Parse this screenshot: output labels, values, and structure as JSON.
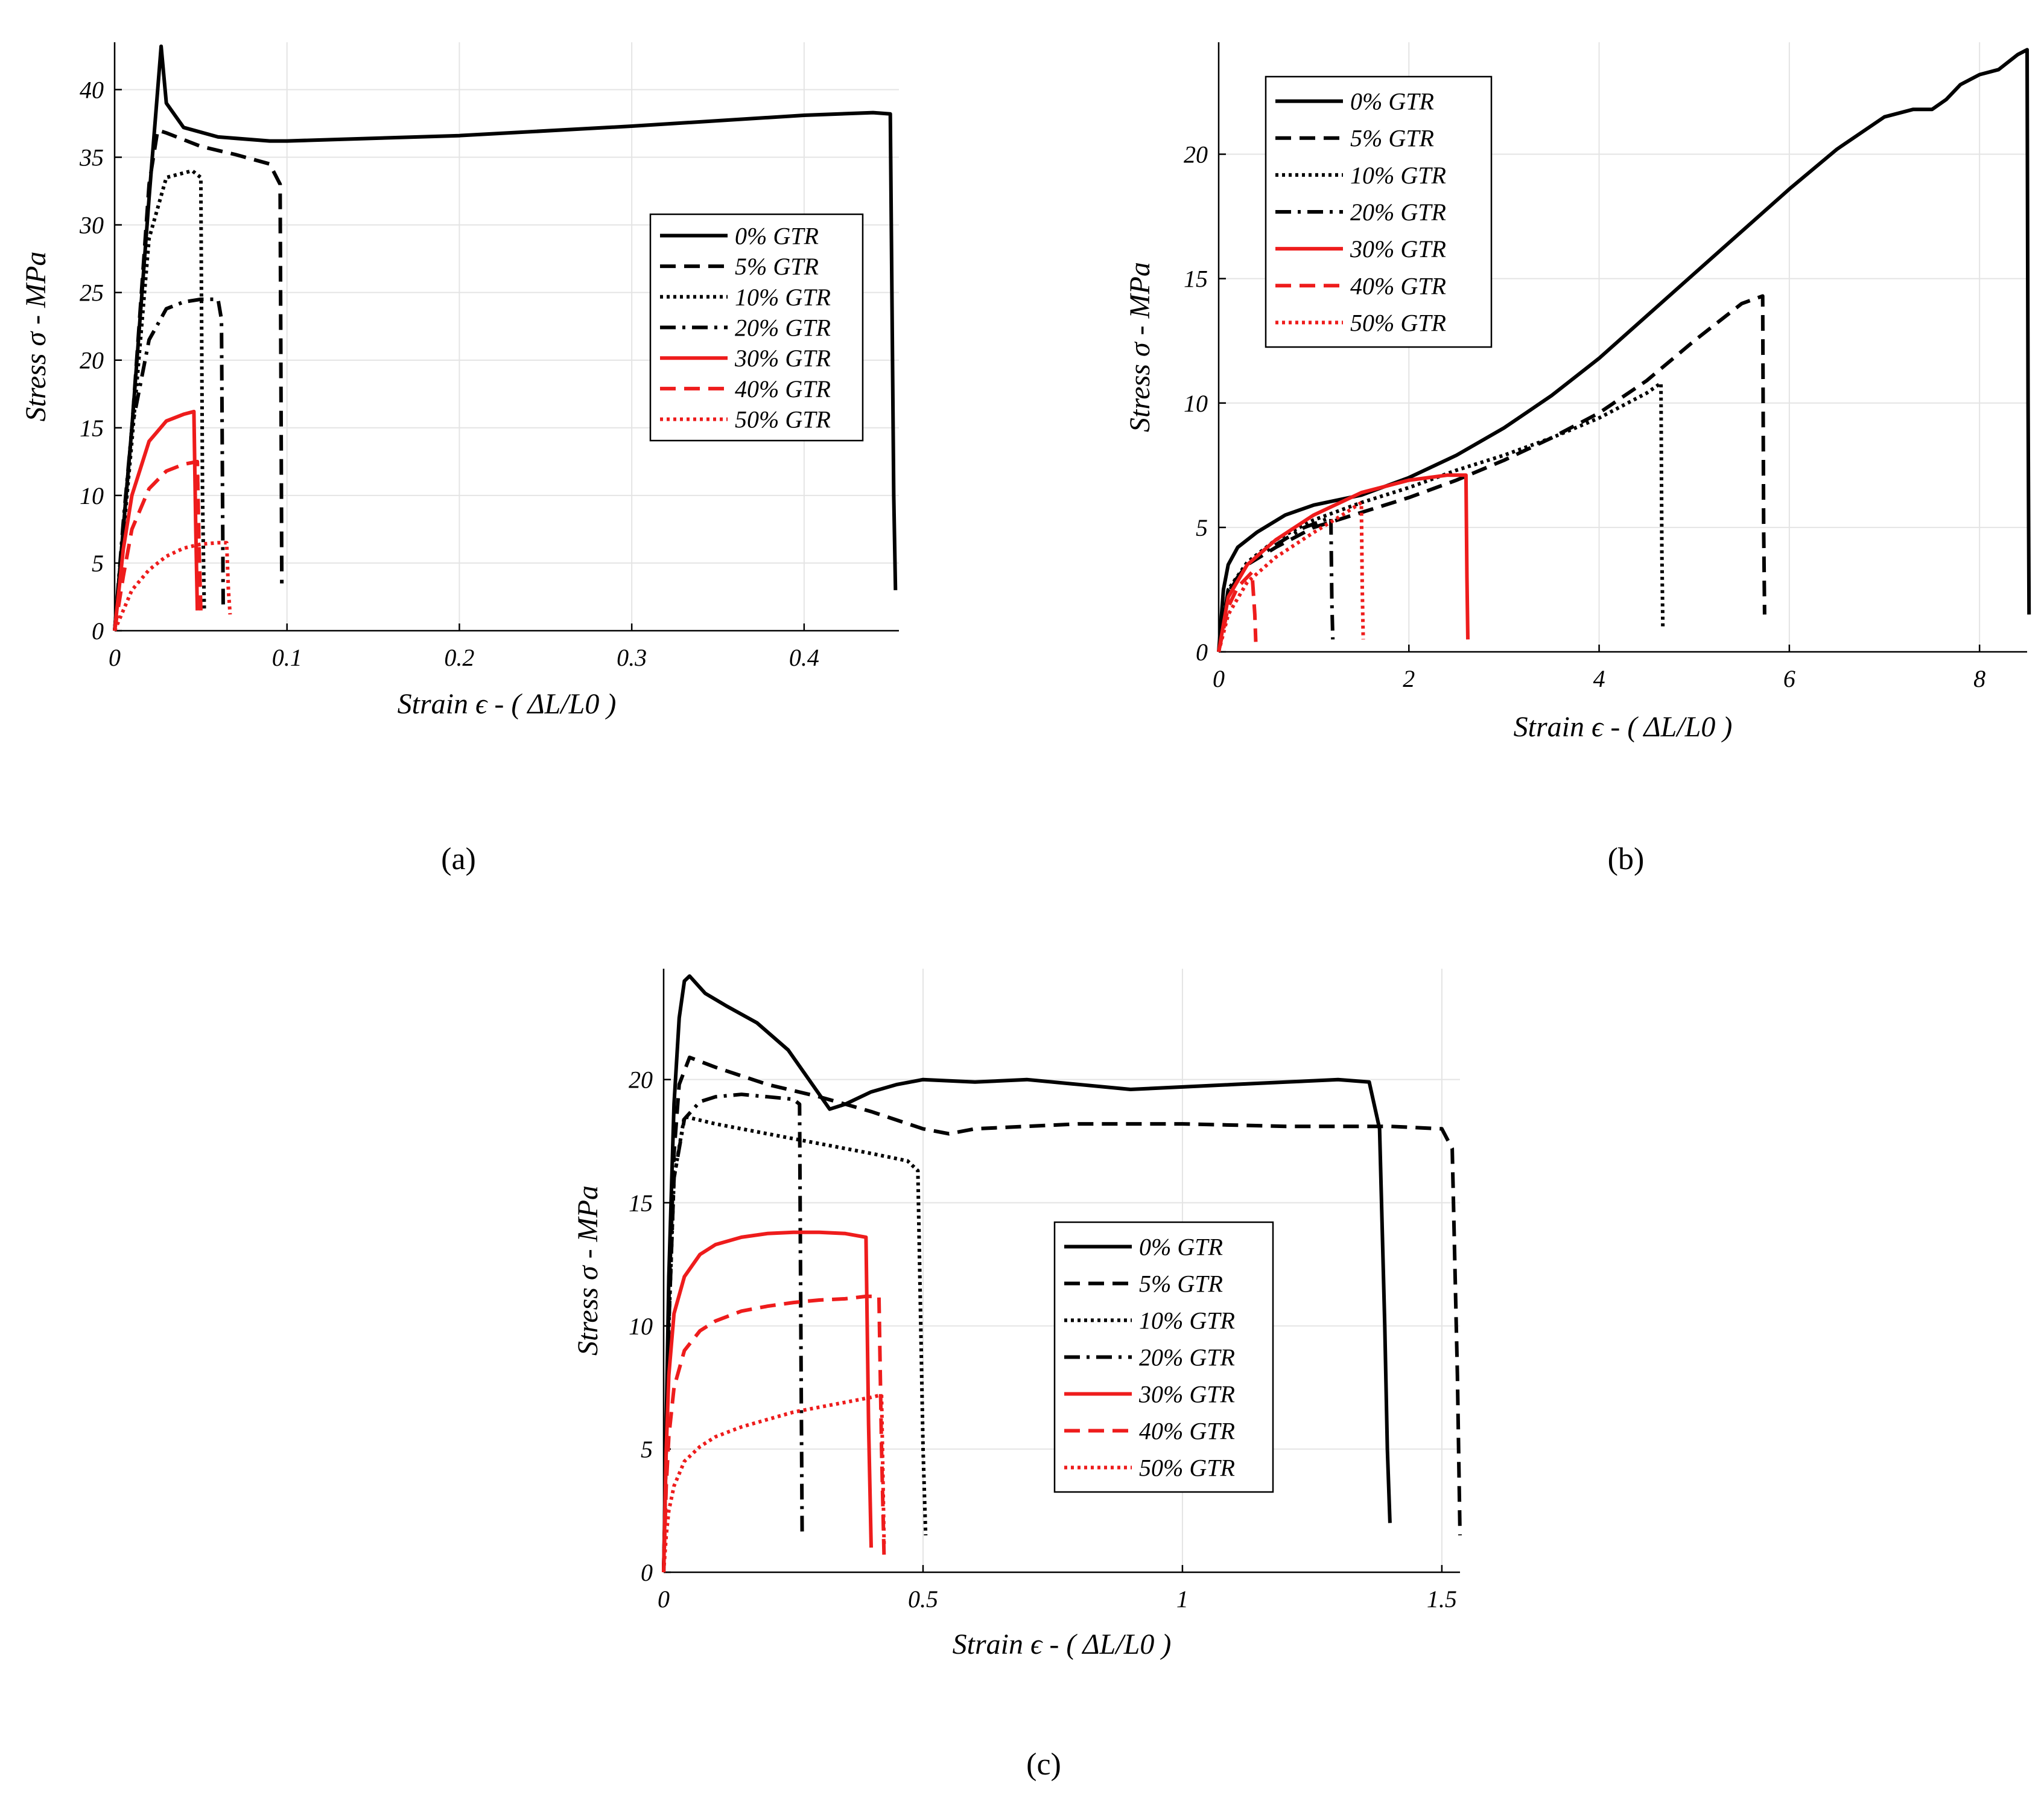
{
  "colors": {
    "black": "#000000",
    "red": "#ee1c1c"
  },
  "styles": [
    "solid",
    "dashed",
    "dotted",
    "dashdot",
    "solid",
    "dashed",
    "dotted"
  ],
  "chart_data": [
    {
      "type": "line",
      "caption": "(a)",
      "xlabel": "Strain ϵ - ( ΔL/L0 )",
      "ylabel": "Stress σ - MPa",
      "xlim": [
        0,
        0.455
      ],
      "ylim": [
        0,
        43.5
      ],
      "xticks": [
        0,
        0.1,
        0.2,
        0.3,
        0.4
      ],
      "xtick_labels": [
        "0",
        "0.1",
        "0.2",
        "0.3",
        "0.4"
      ],
      "yticks": [
        0,
        5,
        10,
        15,
        20,
        25,
        30,
        35,
        40
      ],
      "ytick_labels": [
        "0",
        "5",
        "10",
        "15",
        "20",
        "25",
        "30",
        "35",
        "40"
      ],
      "grid": true,
      "legend_position": "middle-right",
      "series": [
        {
          "name": "0% GTR",
          "color": "black",
          "style": "solid",
          "x": [
            0,
            0.01,
            0.02,
            0.025,
            0.027,
            0.03,
            0.04,
            0.06,
            0.09,
            0.1,
            0.2,
            0.3,
            0.4,
            0.44,
            0.45,
            0.452,
            0.453
          ],
          "y": [
            0,
            15,
            32,
            40,
            43.2,
            39,
            37.2,
            36.5,
            36.2,
            36.2,
            36.6,
            37.3,
            38.1,
            38.3,
            38.2,
            10,
            3
          ]
        },
        {
          "name": "5% GTR",
          "color": "black",
          "style": "dashed",
          "x": [
            0,
            0.01,
            0.02,
            0.025,
            0.03,
            0.05,
            0.07,
            0.09,
            0.096,
            0.097
          ],
          "y": [
            0,
            15,
            33,
            37,
            36.8,
            35.8,
            35.2,
            34.5,
            33,
            3.5
          ]
        },
        {
          "name": "10% GTR",
          "color": "black",
          "style": "dotted",
          "x": [
            0,
            0.01,
            0.02,
            0.03,
            0.045,
            0.05,
            0.051,
            0.052
          ],
          "y": [
            0,
            14,
            29,
            33.5,
            34,
            33.5,
            10,
            1.5
          ]
        },
        {
          "name": "20% GTR",
          "color": "black",
          "style": "dashdot",
          "x": [
            0,
            0.005,
            0.01,
            0.02,
            0.03,
            0.04,
            0.05,
            0.06,
            0.062,
            0.063
          ],
          "y": [
            0,
            8,
            15,
            21.5,
            23.8,
            24.3,
            24.5,
            24.5,
            23,
            1.5
          ]
        },
        {
          "name": "30% GTR",
          "color": "red",
          "style": "solid",
          "x": [
            0,
            0.005,
            0.01,
            0.02,
            0.03,
            0.04,
            0.046,
            0.047,
            0.048
          ],
          "y": [
            0,
            6,
            10,
            14,
            15.5,
            16,
            16.2,
            8,
            1.5
          ]
        },
        {
          "name": "40% GTR",
          "color": "red",
          "style": "dashed",
          "x": [
            0,
            0.005,
            0.01,
            0.02,
            0.03,
            0.04,
            0.048,
            0.049,
            0.05
          ],
          "y": [
            0,
            4,
            7.5,
            10.5,
            11.8,
            12.3,
            12.5,
            6,
            1.5
          ]
        },
        {
          "name": "50% GTR",
          "color": "red",
          "style": "dotted",
          "x": [
            0,
            0.005,
            0.01,
            0.02,
            0.03,
            0.04,
            0.05,
            0.06,
            0.065,
            0.066,
            0.067
          ],
          "y": [
            0,
            1.5,
            3,
            4.5,
            5.5,
            6.1,
            6.4,
            6.5,
            6.5,
            3,
            1.2
          ]
        }
      ]
    },
    {
      "type": "line",
      "caption": "(b)",
      "xlabel": "Strain ϵ - ( ΔL/L0 )",
      "ylabel": "Stress σ - MPa",
      "xlim": [
        0,
        8.5
      ],
      "ylim": [
        0,
        24.5
      ],
      "xticks": [
        0,
        2,
        4,
        6,
        8
      ],
      "xtick_labels": [
        "0",
        "2",
        "4",
        "6",
        "8"
      ],
      "yticks": [
        0,
        5,
        10,
        15,
        20
      ],
      "ytick_labels": [
        "0",
        "5",
        "10",
        "15",
        "20"
      ],
      "grid": true,
      "legend_position": "top-left",
      "series": [
        {
          "name": "0% GTR",
          "color": "black",
          "style": "solid",
          "x": [
            0,
            0.05,
            0.1,
            0.2,
            0.4,
            0.7,
            1,
            1.5,
            2,
            2.5,
            3,
            3.5,
            4,
            4.5,
            5,
            5.5,
            6,
            6.5,
            7,
            7.3,
            7.5,
            7.65,
            7.8,
            8,
            8.2,
            8.4,
            8.5,
            8.51,
            8.52
          ],
          "y": [
            0,
            2.5,
            3.5,
            4.2,
            4.8,
            5.5,
            5.9,
            6.3,
            7,
            7.9,
            9,
            10.3,
            11.8,
            13.5,
            15.2,
            16.9,
            18.6,
            20.2,
            21.5,
            21.8,
            21.8,
            22.2,
            22.8,
            23.2,
            23.4,
            24,
            24.2,
            10,
            1.5
          ]
        },
        {
          "name": "5% GTR",
          "color": "black",
          "style": "dashed",
          "x": [
            0,
            0.1,
            0.3,
            0.6,
            1,
            1.5,
            2,
            2.5,
            3,
            3.5,
            4,
            4.5,
            5,
            5.5,
            5.72,
            5.73,
            5.74
          ],
          "y": [
            0,
            2.5,
            3.5,
            4.2,
            5,
            5.6,
            6.2,
            6.9,
            7.7,
            8.6,
            9.6,
            10.9,
            12.5,
            14,
            14.3,
            5,
            1.5
          ]
        },
        {
          "name": "10% GTR",
          "color": "black",
          "style": "dotted",
          "x": [
            0,
            0.1,
            0.3,
            0.6,
            1,
            1.5,
            2,
            2.5,
            3,
            3.5,
            4,
            4.5,
            4.65,
            4.66,
            4.67
          ],
          "y": [
            0,
            2.5,
            3.6,
            4.5,
            5.3,
            6,
            6.6,
            7.3,
            7.9,
            8.6,
            9.4,
            10.4,
            10.8,
            4,
            1
          ]
        },
        {
          "name": "20% GTR",
          "color": "black",
          "style": "dashdot",
          "x": [
            0,
            0.1,
            0.3,
            0.6,
            0.9,
            1.18,
            1.19,
            1.2
          ],
          "y": [
            0,
            2.4,
            3.5,
            4.3,
            5,
            5.4,
            2,
            0.5
          ]
        },
        {
          "name": "30% GTR",
          "color": "red",
          "style": "solid",
          "x": [
            0,
            0.1,
            0.3,
            0.6,
            1,
            1.5,
            2,
            2.4,
            2.6,
            2.61,
            2.62
          ],
          "y": [
            0,
            2.2,
            3.5,
            4.5,
            5.5,
            6.4,
            6.9,
            7.1,
            7.1,
            3,
            0.5
          ]
        },
        {
          "name": "40% GTR",
          "color": "red",
          "style": "dashed",
          "x": [
            0,
            0.1,
            0.2,
            0.35,
            0.38,
            0.39
          ],
          "y": [
            0,
            1.8,
            2.6,
            3.2,
            1.5,
            0.4
          ]
        },
        {
          "name": "50% GTR",
          "color": "red",
          "style": "dotted",
          "x": [
            0,
            0.1,
            0.3,
            0.6,
            1,
            1.3,
            1.5,
            1.51,
            1.52
          ],
          "y": [
            0,
            1.5,
            2.8,
            3.8,
            4.8,
            5.5,
            6,
            2.5,
            0.5
          ]
        }
      ]
    },
    {
      "type": "line",
      "caption": "(c)",
      "xlabel": "Strain ϵ - ( ΔL/L0 )",
      "ylabel": "Stress σ - MPa",
      "xlim": [
        0,
        1.535
      ],
      "ylim": [
        0,
        24.5
      ],
      "xticks": [
        0,
        0.5,
        1,
        1.5
      ],
      "xtick_labels": [
        "0",
        "0.5",
        "1",
        "1.5"
      ],
      "yticks": [
        0,
        5,
        10,
        15,
        20
      ],
      "ytick_labels": [
        "0",
        "5",
        "10",
        "15",
        "20"
      ],
      "grid": true,
      "legend_position": "middle-right",
      "series": [
        {
          "name": "0% GTR",
          "color": "black",
          "style": "solid",
          "x": [
            0,
            0.01,
            0.02,
            0.03,
            0.04,
            0.05,
            0.08,
            0.12,
            0.18,
            0.24,
            0.28,
            0.32,
            0.35,
            0.4,
            0.45,
            0.5,
            0.6,
            0.7,
            0.8,
            0.9,
            1,
            1.1,
            1.2,
            1.3,
            1.36,
            1.38,
            1.39,
            1.395,
            1.4
          ],
          "y": [
            0,
            12,
            19,
            22.5,
            24,
            24.2,
            23.5,
            23,
            22.3,
            21.2,
            20,
            18.8,
            19,
            19.5,
            19.8,
            20,
            19.9,
            20,
            19.8,
            19.6,
            19.7,
            19.8,
            19.9,
            20,
            19.9,
            18,
            10,
            5,
            2
          ]
        },
        {
          "name": "5% GTR",
          "color": "black",
          "style": "dashed",
          "x": [
            0,
            0.01,
            0.02,
            0.03,
            0.05,
            0.1,
            0.2,
            0.3,
            0.4,
            0.5,
            0.55,
            0.6,
            0.8,
            1,
            1.2,
            1.4,
            1.5,
            1.52,
            1.53,
            1.535
          ],
          "y": [
            0,
            11,
            17,
            19.8,
            20.9,
            20.5,
            19.8,
            19.3,
            18.7,
            18,
            17.8,
            18,
            18.2,
            18.2,
            18.1,
            18.1,
            18,
            17.2,
            8,
            1.5
          ]
        },
        {
          "name": "10% GTR",
          "color": "black",
          "style": "dotted",
          "x": [
            0,
            0.01,
            0.02,
            0.04,
            0.1,
            0.2,
            0.3,
            0.4,
            0.47,
            0.49,
            0.5,
            0.505
          ],
          "y": [
            0,
            10,
            16,
            18.5,
            18.2,
            17.8,
            17.4,
            17,
            16.7,
            16.3,
            5,
            1.5
          ]
        },
        {
          "name": "20% GTR",
          "color": "black",
          "style": "dashdot",
          "x": [
            0,
            0.01,
            0.02,
            0.04,
            0.07,
            0.1,
            0.15,
            0.2,
            0.25,
            0.262,
            0.265,
            0.267
          ],
          "y": [
            0,
            10,
            16,
            18.4,
            19.1,
            19.3,
            19.4,
            19.3,
            19.2,
            19,
            8,
            1.5
          ]
        },
        {
          "name": "30% GTR",
          "color": "red",
          "style": "solid",
          "x": [
            0,
            0.005,
            0.01,
            0.02,
            0.04,
            0.07,
            0.1,
            0.15,
            0.2,
            0.25,
            0.3,
            0.35,
            0.39,
            0.395,
            0.4
          ],
          "y": [
            0,
            5,
            8,
            10.5,
            12,
            12.9,
            13.3,
            13.6,
            13.75,
            13.8,
            13.8,
            13.75,
            13.6,
            6,
            1
          ]
        },
        {
          "name": "40% GTR",
          "color": "red",
          "style": "dashed",
          "x": [
            0,
            0.005,
            0.01,
            0.02,
            0.04,
            0.07,
            0.1,
            0.15,
            0.2,
            0.25,
            0.3,
            0.35,
            0.39,
            0.415,
            0.42,
            0.425
          ],
          "y": [
            0,
            3.5,
            5.5,
            7.5,
            9,
            9.8,
            10.2,
            10.6,
            10.8,
            10.95,
            11.05,
            11.1,
            11.2,
            11.2,
            5,
            0.5
          ]
        },
        {
          "name": "50% GTR",
          "color": "red",
          "style": "dotted",
          "x": [
            0,
            0.005,
            0.01,
            0.02,
            0.04,
            0.07,
            0.1,
            0.15,
            0.2,
            0.25,
            0.3,
            0.35,
            0.4,
            0.42,
            0.425
          ],
          "y": [
            0,
            1.5,
            2.5,
            3.5,
            4.5,
            5.1,
            5.5,
            5.9,
            6.2,
            6.5,
            6.7,
            6.9,
            7.1,
            7.2,
            1
          ]
        }
      ]
    }
  ]
}
